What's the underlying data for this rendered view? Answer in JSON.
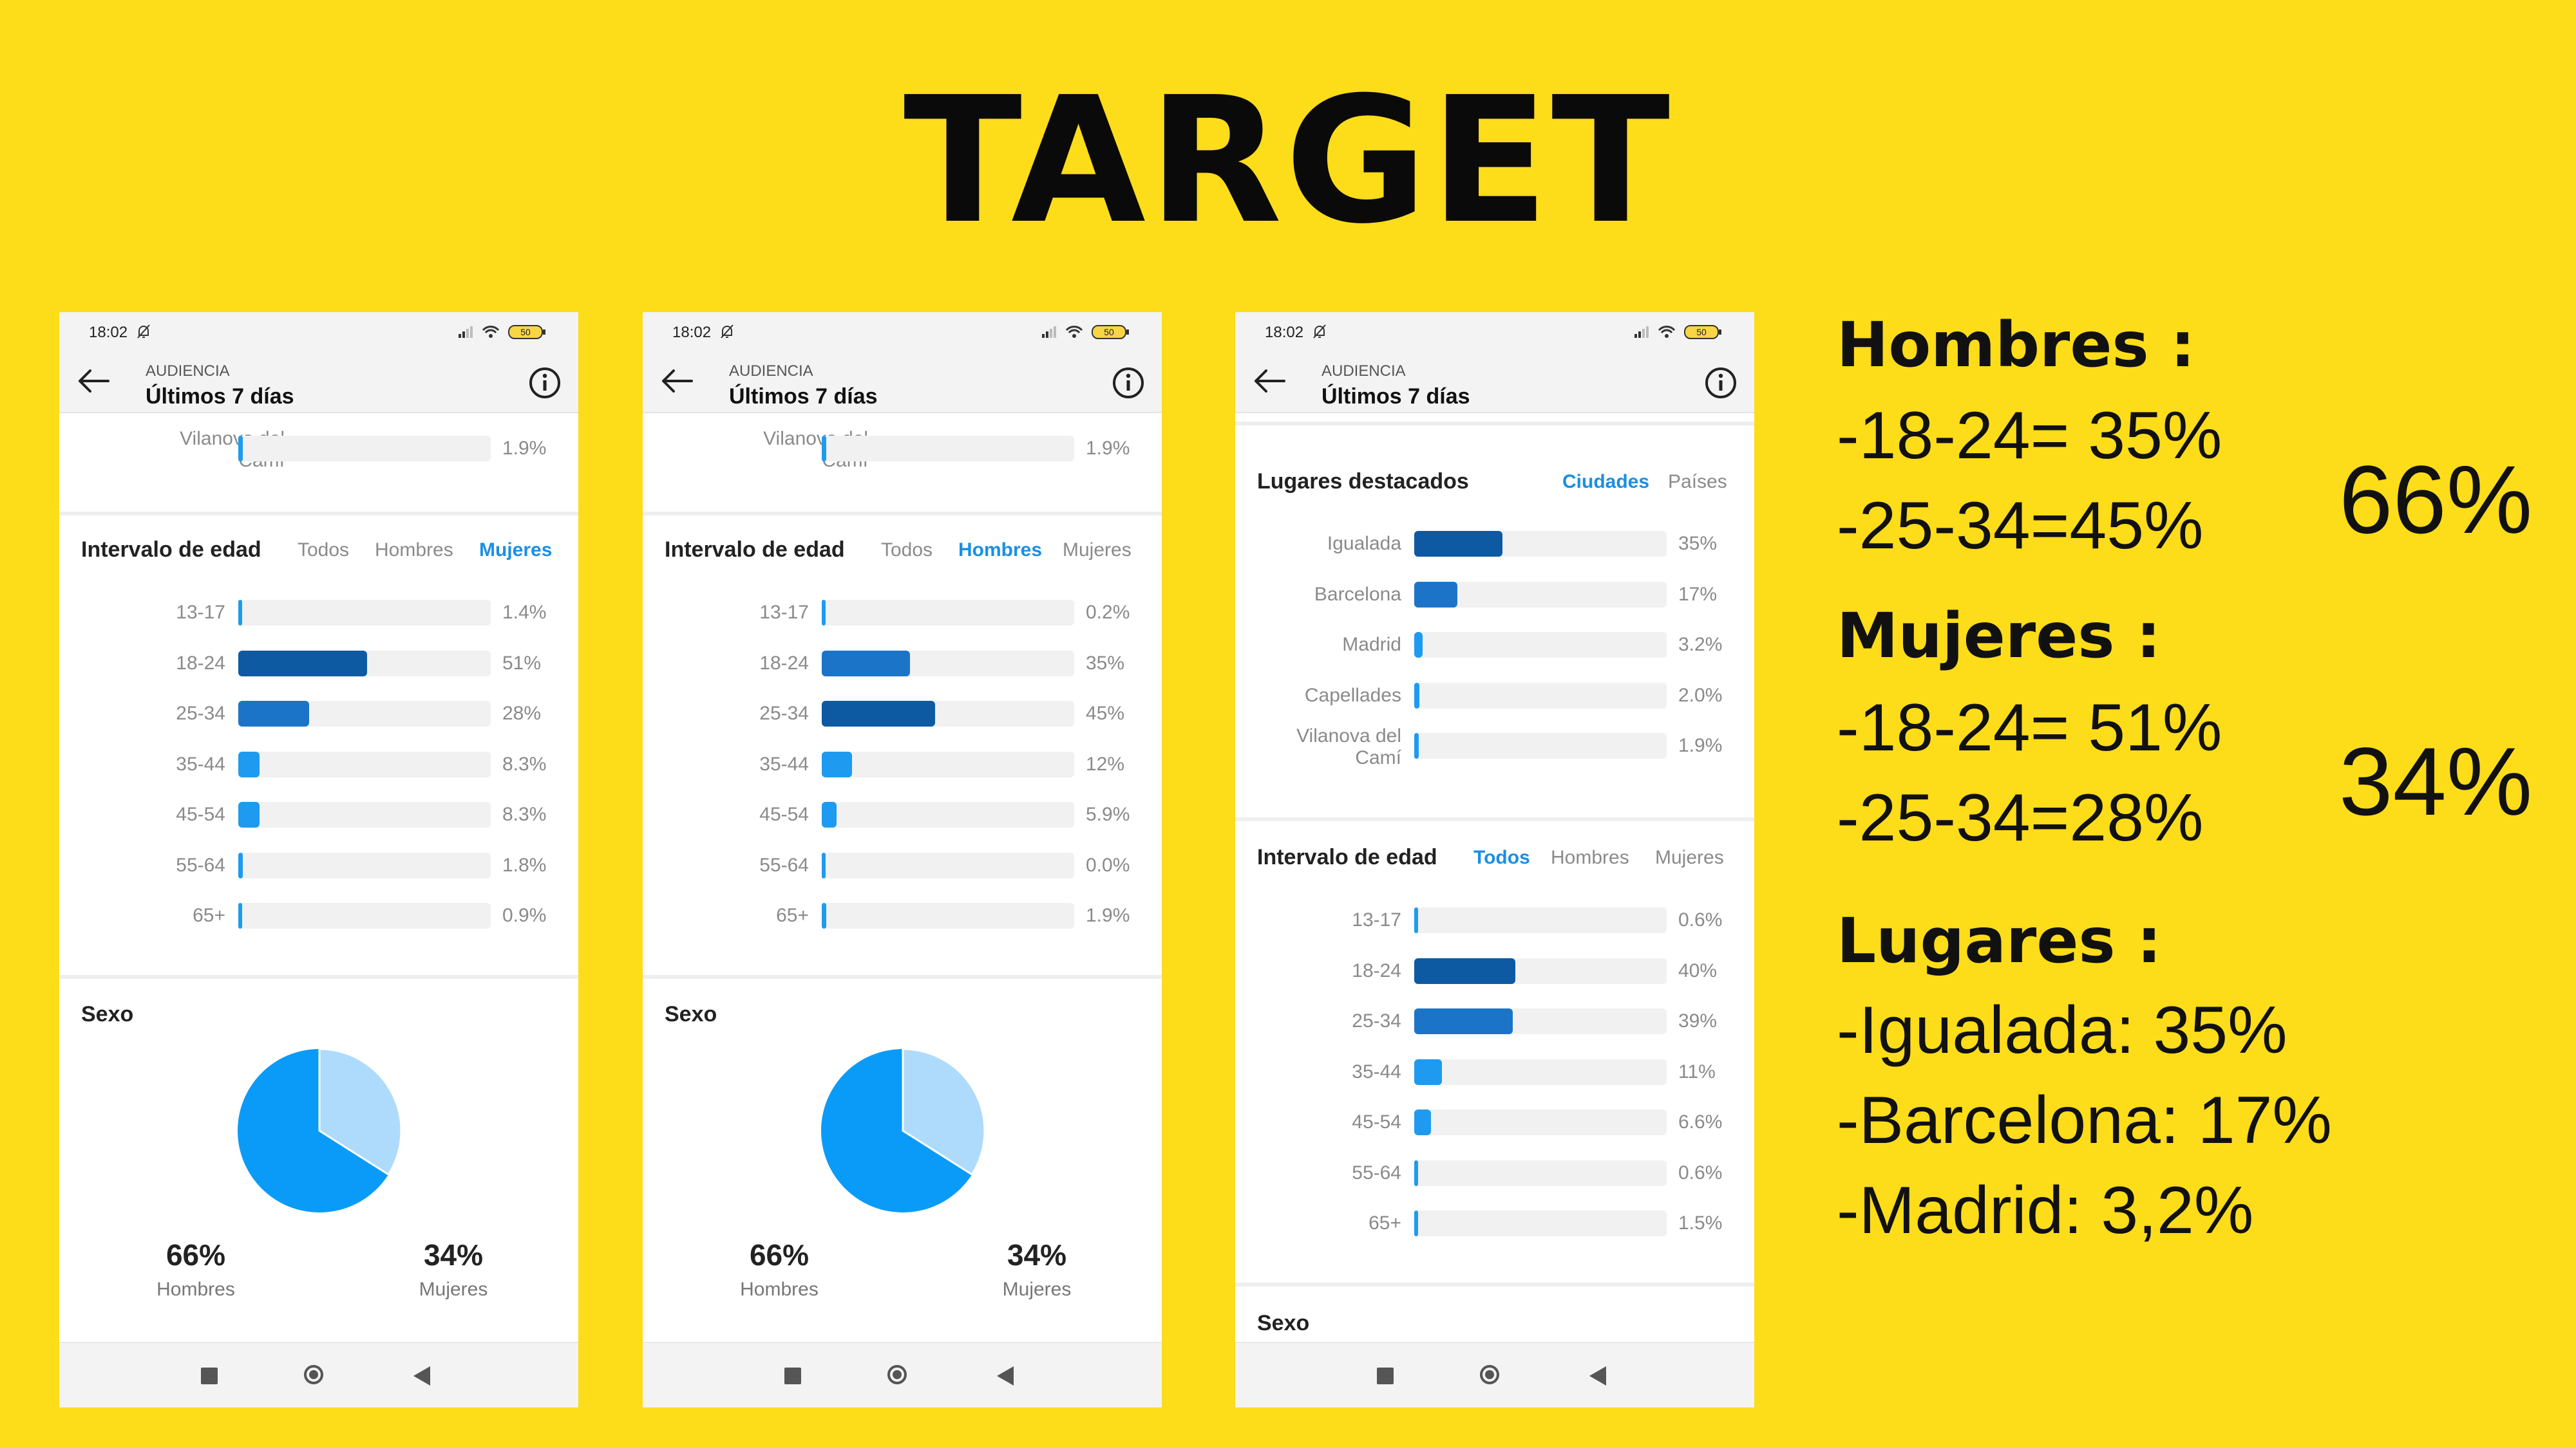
{
  "title": "TARGET",
  "phone_common": {
    "time": "18:02",
    "battery": "50",
    "overline": "AUDIENCIA",
    "title": "Últimos 7 días",
    "age_section_title": "Intervalo de edad",
    "tab_todos": "Todos",
    "tab_hombres": "Hombres",
    "tab_mujeres": "Mujeres",
    "sexo_title": "Sexo",
    "hombres_pct": "66%",
    "hombres_label": "Hombres",
    "mujeres_pct": "34%",
    "mujeres_label": "Mujeres",
    "lugares_title": "Lugares destacados",
    "tab_ciudades": "Ciudades",
    "tab_paises": "Países"
  },
  "phone1": {
    "city_row": {
      "label_1": "Vilanova del",
      "label_2": "Camí",
      "pct": "1.9%",
      "value": 1.9
    },
    "ages": [
      {
        "label": "13-17",
        "pct": "1.4%",
        "value": 1.4
      },
      {
        "label": "18-24",
        "pct": "51%",
        "value": 51
      },
      {
        "label": "25-34",
        "pct": "28%",
        "value": 28
      },
      {
        "label": "35-44",
        "pct": "8.3%",
        "value": 8.3
      },
      {
        "label": "45-54",
        "pct": "8.3%",
        "value": 8.3
      },
      {
        "label": "55-64",
        "pct": "1.8%",
        "value": 1.8
      },
      {
        "label": "65+",
        "pct": "0.9%",
        "value": 0.9
      }
    ]
  },
  "phone2": {
    "city_row": {
      "label_1": "Vilanova del",
      "label_2": "Camí",
      "pct": "1.9%",
      "value": 1.9
    },
    "ages": [
      {
        "label": "13-17",
        "pct": "0.2%",
        "value": 0.2
      },
      {
        "label": "18-24",
        "pct": "35%",
        "value": 35
      },
      {
        "label": "25-34",
        "pct": "45%",
        "value": 45
      },
      {
        "label": "35-44",
        "pct": "12%",
        "value": 12
      },
      {
        "label": "45-54",
        "pct": "5.9%",
        "value": 5.9
      },
      {
        "label": "55-64",
        "pct": "0.0%",
        "value": 0.0
      },
      {
        "label": "65+",
        "pct": "1.9%",
        "value": 1.9
      }
    ]
  },
  "phone3": {
    "cities": [
      {
        "label": "Igualada",
        "pct": "35%",
        "value": 35
      },
      {
        "label": "Barcelona",
        "pct": "17%",
        "value": 17
      },
      {
        "label": "Madrid",
        "pct": "3.2%",
        "value": 3.2
      },
      {
        "label": "Capellades",
        "pct": "2.0%",
        "value": 2.0
      },
      {
        "label_1": "Vilanova del",
        "label_2": "Camí",
        "pct": "1.9%",
        "value": 1.9
      }
    ],
    "ages": [
      {
        "label": "13-17",
        "pct": "0.6%",
        "value": 0.6
      },
      {
        "label": "18-24",
        "pct": "40%",
        "value": 40
      },
      {
        "label": "25-34",
        "pct": "39%",
        "value": 39
      },
      {
        "label": "35-44",
        "pct": "11%",
        "value": 11
      },
      {
        "label": "45-54",
        "pct": "6.6%",
        "value": 6.6
      },
      {
        "label": "55-64",
        "pct": "0.6%",
        "value": 0.6
      },
      {
        "label": "65+",
        "pct": "1.5%",
        "value": 1.5
      }
    ]
  },
  "pie": {
    "hombres_share": 66,
    "mujeres_share": 34
  },
  "colors": {
    "background": "#fddc1a",
    "accent": "#1a8fe3",
    "bar_top": "#0d5aa3",
    "bar_second": "#1c74c9",
    "bar_other": "#1e9bf0",
    "pie_main": "#0a9bf8",
    "pie_light": "#aedbfb"
  },
  "notes": {
    "hombres_heading": "Hombres :",
    "hombres_line1": "-18-24= 35%",
    "hombres_line2": "-25-34=45%",
    "hombres_total": "66%",
    "mujeres_heading": "Mujeres :",
    "mujeres_line1": "-18-24= 51%",
    "mujeres_line2": "-25-34=28%",
    "mujeres_total": "34%",
    "lugares_heading": "Lugares :",
    "lugares_line1": "-Igualada: 35%",
    "lugares_line2": "-Barcelona: 17%",
    "lugares_line3": "-Madrid: 3,2%"
  }
}
